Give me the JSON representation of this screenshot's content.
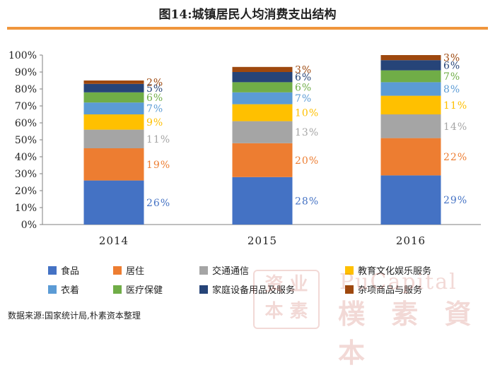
{
  "title": "图14:城镇居民人均消费支出结构",
  "source": "数据来源:国家统计局,朴素资本整理",
  "watermark": {
    "seal_text": "资 业 本 素",
    "cn_text": "樸 素 資 本",
    "en_text": "PuCapital"
  },
  "chart_data": {
    "type": "bar",
    "stacked": true,
    "categories": [
      "2014",
      "2015",
      "2016"
    ],
    "ylim": [
      0,
      100
    ],
    "yticks": [
      "0%",
      "10%",
      "20%",
      "30%",
      "40%",
      "50%",
      "60%",
      "70%",
      "80%",
      "90%",
      "100%"
    ],
    "series": [
      {
        "name": "食品",
        "color": "#4472c4",
        "values": [
          26,
          28,
          29
        ],
        "labels": [
          "26%",
          "28%",
          "29%"
        ]
      },
      {
        "name": "居住",
        "color": "#ed7d31",
        "values": [
          19,
          20,
          22
        ],
        "labels": [
          "19%",
          "20%",
          "22%"
        ]
      },
      {
        "name": "交通通信",
        "color": "#a5a5a5",
        "values": [
          11,
          13,
          14
        ],
        "labels": [
          "11%",
          "13%",
          "14%"
        ]
      },
      {
        "name": "教育文化娱乐服务",
        "color": "#ffc000",
        "values": [
          9,
          10,
          11
        ],
        "labels": [
          "9%",
          "10%",
          "11%"
        ]
      },
      {
        "name": "衣着",
        "color": "#5b9bd5",
        "values": [
          7,
          7,
          8
        ],
        "labels": [
          "7%",
          "7%",
          "8%"
        ]
      },
      {
        "name": "医疗保健",
        "color": "#70ad47",
        "values": [
          6,
          6,
          7
        ],
        "labels": [
          "6%",
          "6%",
          "7%"
        ]
      },
      {
        "name": "家庭设备用品及服务",
        "color": "#264478",
        "values": [
          5,
          6,
          6
        ],
        "labels": [
          "5%",
          "6%",
          "6%"
        ]
      },
      {
        "name": "杂项商品与服务",
        "color": "#9e480e",
        "values": [
          2,
          3,
          3
        ],
        "labels": [
          "2%",
          "3%",
          "3%"
        ]
      }
    ],
    "legend_position": "bottom",
    "grid": false
  }
}
